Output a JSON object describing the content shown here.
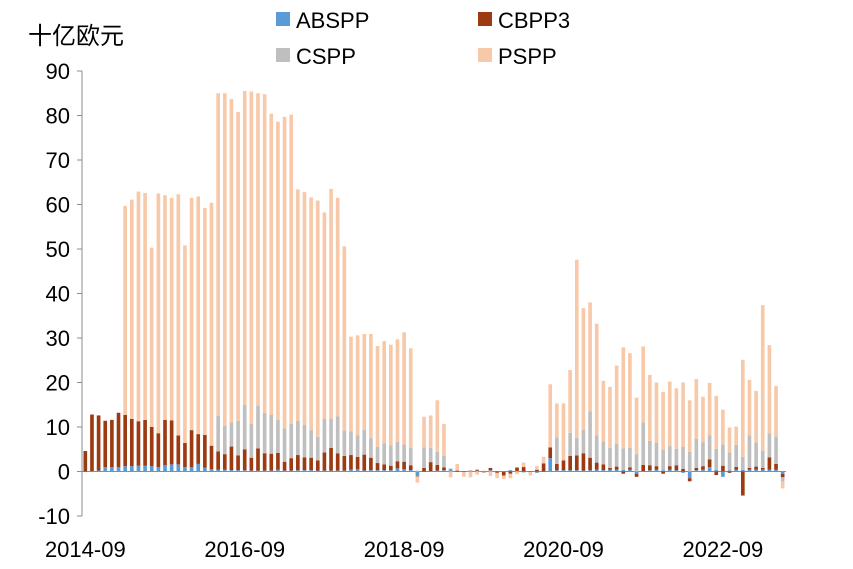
{
  "chart_data": {
    "type": "bar",
    "stacked": true,
    "unit_label": "十亿欧元",
    "ylim": [
      -10,
      90
    ],
    "yticks": [
      -10,
      0,
      10,
      20,
      30,
      40,
      50,
      60,
      70,
      80,
      90
    ],
    "xtick_labels": [
      "2014-09",
      "2016-09",
      "2018-09",
      "2020-09",
      "2022-09"
    ],
    "legend_position": "top",
    "colors": {
      "ABSPP": "#5b9bd5",
      "CBPP3": "#9c3a12",
      "CSPP": "#bfbfbf",
      "PSPP": "#f8c9a8"
    },
    "series": [
      {
        "name": "ABSPP",
        "values": [
          0.0,
          0.1,
          0.2,
          1.0,
          1.0,
          1.0,
          1.2,
          1.2,
          1.3,
          1.3,
          1.2,
          1.0,
          1.4,
          1.6,
          1.6,
          1.0,
          1.0,
          1.7,
          0.9,
          0.5,
          0.4,
          0.4,
          0.3,
          0.3,
          0.3,
          0.2,
          0.2,
          0.2,
          0.2,
          0.4,
          0.2,
          0.2,
          0.3,
          0.3,
          0.3,
          0.2,
          0.2,
          0.2,
          0.2,
          0.2,
          0.4,
          0.5,
          0.2,
          0.3,
          0.3,
          0.3,
          0.3,
          0.7,
          0.5,
          0.3,
          -1.0,
          0.0,
          0.1,
          0.2,
          0.3,
          0.4,
          0.0,
          0.1,
          0.1,
          0.2,
          0.0,
          0.3,
          0.1,
          -0.1,
          0.3,
          0.1,
          -0.2,
          0.1,
          -0.3,
          0.0,
          3.0,
          0.3,
          0.3,
          0.3,
          0.3,
          0.2,
          0.3,
          0.4,
          0.3,
          0.4,
          0.4,
          0.4,
          0.4,
          -0.5,
          0.1,
          0.3,
          0.4,
          0.3,
          0.4,
          0.3,
          -0.3,
          -1.5,
          0.3,
          0.4,
          1.0,
          0.4,
          -1.2,
          0.3,
          0.4,
          0.4,
          0.4,
          0.4,
          0.4,
          0.4,
          0.4,
          -0.5
        ]
      },
      {
        "name": "CBPP3",
        "values": [
          4.6,
          12.7,
          12.4,
          10.4,
          10.6,
          12.2,
          11.5,
          10.6,
          10.0,
          10.3,
          8.8,
          7.6,
          10.2,
          9.9,
          6.5,
          5.4,
          8.3,
          6.7,
          7.3,
          5.3,
          4.1,
          3.5,
          5.3,
          3.3,
          4.7,
          2.9,
          5.0,
          3.9,
          3.8,
          3.8,
          2.0,
          2.8,
          3.4,
          2.9,
          2.8,
          2.3,
          4.1,
          5.1,
          3.9,
          3.3,
          3.3,
          2.8,
          3.6,
          2.8,
          1.6,
          1.3,
          1.0,
          1.6,
          1.7,
          1.1,
          -0.1,
          0.8,
          2.0,
          1.3,
          0.6,
          0.1,
          0.2,
          -0.1,
          0.1,
          0.2,
          -0.2,
          0.5,
          -0.3,
          -0.8,
          -0.5,
          0.8,
          1.0,
          -0.1,
          0.4,
          1.8,
          2.4,
          1.4,
          2.2,
          3.2,
          3.3,
          3.9,
          2.8,
          1.6,
          1.3,
          0.4,
          0.7,
          -0.5,
          0.5,
          -0.7,
          1.4,
          1.1,
          0.8,
          -0.5,
          0.8,
          1.1,
          0.6,
          -0.7,
          0.5,
          0.8,
          1.7,
          -0.8,
          1.3,
          -0.3,
          0.6,
          -5.4,
          0.4,
          0.7,
          0.4,
          2.8,
          1.3,
          -0.8
        ]
      },
      {
        "name": "CSPP",
        "values": [
          0.0,
          0.0,
          0.0,
          0.0,
          0.0,
          0.0,
          0.0,
          0.0,
          0.0,
          0.0,
          0.0,
          0.0,
          0.0,
          0.0,
          0.0,
          0.0,
          0.0,
          0.0,
          0.0,
          0.0,
          8.0,
          6.4,
          5.4,
          7.8,
          10.0,
          7.6,
          9.6,
          9.1,
          8.7,
          7.4,
          7.5,
          7.7,
          7.7,
          7.3,
          6.2,
          5.3,
          7.5,
          6.5,
          8.3,
          5.7,
          5.3,
          4.8,
          5.6,
          4.4,
          3.6,
          4.7,
          4.6,
          4.4,
          3.9,
          3.9,
          0.2,
          4.6,
          3.2,
          2.9,
          2.6,
          0.2,
          0.0,
          0.0,
          0.0,
          0.0,
          0.0,
          0.0,
          0.0,
          0.0,
          0.0,
          0.0,
          0.0,
          0.0,
          0.0,
          0.0,
          0.0,
          6.0,
          0.0,
          5.2,
          4.0,
          5.3,
          10.4,
          6.1,
          5.2,
          4.5,
          5.1,
          4.8,
          4.4,
          3.9,
          9.5,
          5.5,
          5.2,
          4.6,
          4.5,
          3.7,
          4.9,
          4.4,
          6.5,
          5.4,
          5.4,
          4.7,
          4.8,
          4.0,
          5.0,
          2.9,
          7.3,
          5.4,
          3.8,
          5.4,
          6.2,
          -1.0
        ]
      },
      {
        "name": "PSPP",
        "values": [
          0.0,
          0.0,
          0.0,
          0.0,
          0.0,
          0.0,
          47.0,
          49.3,
          51.6,
          51.0,
          40.3,
          53.9,
          50.5,
          50.0,
          54.2,
          44.4,
          52.2,
          53.4,
          51.0,
          54.6,
          72.5,
          74.7,
          72.7,
          69.4,
          70.5,
          74.7,
          70.2,
          71.6,
          67.7,
          67.0,
          70.0,
          69.5,
          52.0,
          52.3,
          52.3,
          53.1,
          46.4,
          51.7,
          49.1,
          41.4,
          21.3,
          22.5,
          21.5,
          23.4,
          22.7,
          23.0,
          22.6,
          23.0,
          25.2,
          22.4,
          -1.4,
          6.9,
          7.3,
          11.6,
          7.2,
          -1.3,
          1.5,
          -1.1,
          -1.3,
          -0.7,
          0.2,
          -1.0,
          -1.2,
          -0.8,
          -1.0,
          -0.6,
          1.0,
          -0.8,
          0.8,
          1.5,
          14.2,
          7.6,
          12.8,
          14.1,
          40.0,
          27.3,
          24.5,
          25.1,
          13.6,
          13.7,
          17.6,
          22.7,
          21.3,
          12.7,
          17.1,
          14.8,
          13.6,
          13.0,
          14.5,
          13.6,
          14.5,
          11.6,
          13.5,
          10.2,
          11.8,
          11.9,
          7.8,
          5.6,
          4.1,
          21.8,
          12.5,
          11.6,
          32.8,
          19.8,
          11.3,
          -1.5
        ]
      }
    ]
  }
}
